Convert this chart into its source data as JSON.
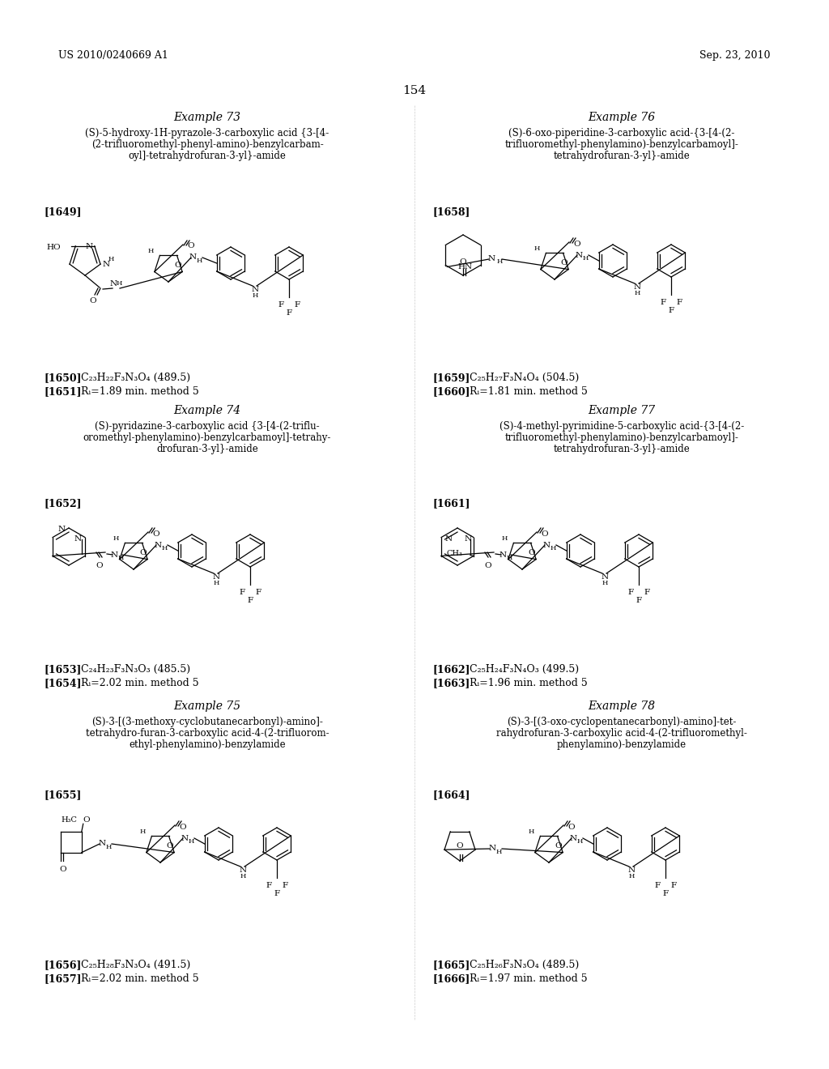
{
  "page_header_left": "US 2010/0240669 A1",
  "page_header_right": "Sep. 23, 2010",
  "page_number": "154",
  "background_color": "#ffffff",
  "examples": [
    {
      "title": "Example 73",
      "name_lines": [
        "(S)-5-hydroxy-1H-pyrazole-3-carboxylic acid {3-[4-",
        "(2-trifluoromethyl-phenyl-amino)-benzylcarbam-",
        "oyl]-tetrahydrofuran-3-yl}-amide"
      ],
      "bracket": "[1649]",
      "ids": [
        "[1650]",
        "[1651]"
      ],
      "data": [
        "C₂₃H₂₂F₃N₃O₄ (489.5)",
        "Rᵢ=1.89 min. method 5"
      ],
      "col": 0,
      "row": 0
    },
    {
      "title": "Example 76",
      "name_lines": [
        "(S)-6-oxo-piperidine-3-carboxylic acid-{3-[4-(2-",
        "trifluoromethyl-phenylamino)-benzylcarbamoyl]-",
        "tetrahydrofuran-3-yl}-amide"
      ],
      "bracket": "[1658]",
      "ids": [
        "[1659]",
        "[1660]"
      ],
      "data": [
        "C₂₅H₂₇F₃N₄O₄ (504.5)",
        "Rᵢ=1.81 min. method 5"
      ],
      "col": 1,
      "row": 0
    },
    {
      "title": "Example 74",
      "name_lines": [
        "(S)-pyridazine-3-carboxylic acid {3-[4-(2-triflu-",
        "oromethyl-phenylamino)-benzylcarbamoyl]-tetrahy-",
        "drofuran-3-yl}-amide"
      ],
      "bracket": "[1652]",
      "ids": [
        "[1653]",
        "[1654]"
      ],
      "data": [
        "C₂₄H₂₃F₃N₃O₃ (485.5)",
        "Rᵢ=2.02 min. method 5"
      ],
      "col": 0,
      "row": 1
    },
    {
      "title": "Example 77",
      "name_lines": [
        "(S)-4-methyl-pyrimidine-5-carboxylic acid-{3-[4-(2-",
        "trifluoromethyl-phenylamino)-benzylcarbamoyl]-",
        "tetrahydrofuran-3-yl}-amide"
      ],
      "bracket": "[1661]",
      "ids": [
        "[1662]",
        "[1663]"
      ],
      "data": [
        "C₂₅H₂₄F₃N₄O₃ (499.5)",
        "Rᵢ=1.96 min. method 5"
      ],
      "col": 1,
      "row": 1
    },
    {
      "title": "Example 75",
      "name_lines": [
        "(S)-3-[(3-methoxy-cyclobutanecarbonyl)-amino]-",
        "tetrahydro-furan-3-carboxylic acid-4-(2-trifluorom-",
        "ethyl-phenylamino)-benzylamide"
      ],
      "bracket": "[1655]",
      "ids": [
        "[1656]",
        "[1657]"
      ],
      "data": [
        "C₂₅H₂₈F₃N₃O₄ (491.5)",
        "Rᵢ=2.02 min. method 5"
      ],
      "col": 0,
      "row": 2
    },
    {
      "title": "Example 78",
      "name_lines": [
        "(S)-3-[(3-oxo-cyclopentanecarbonyl)-amino]-tet-",
        "rahydrofuran-3-carboxylic acid-4-(2-trifluoromethyl-",
        "phenylamino)-benzylamide"
      ],
      "bracket": "[1664]",
      "ids": [
        "[1665]",
        "[1666]"
      ],
      "data": [
        "C₂₅H₂₆F₃N₃O₄ (489.5)",
        "Rᵢ=1.97 min. method 5"
      ],
      "col": 1,
      "row": 2
    }
  ]
}
